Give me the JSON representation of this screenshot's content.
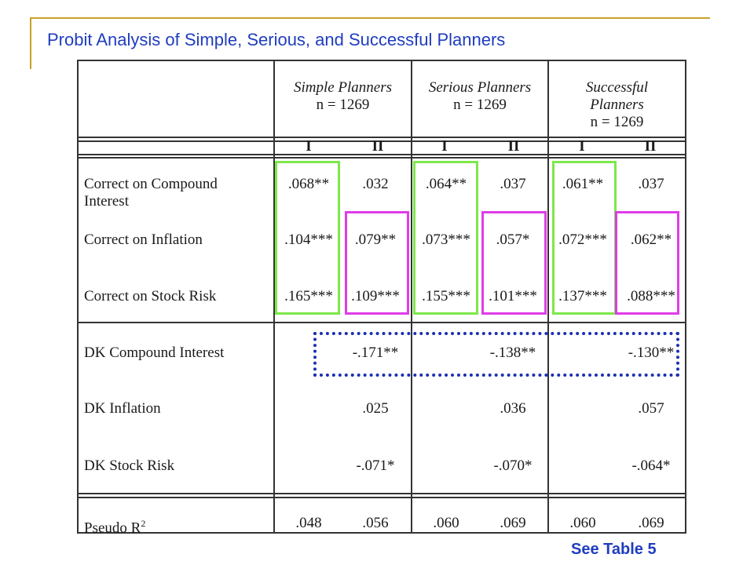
{
  "slide": {
    "title": "Probit Analysis of Simple, Serious, and Successful Planners",
    "footer_link": "See Table 5"
  },
  "table": {
    "groups": [
      {
        "line1": "Simple Planners",
        "line2": "",
        "n": "n = 1269"
      },
      {
        "line1": "Serious Planners",
        "line2": "",
        "n": "n = 1269"
      },
      {
        "line1": "Successful",
        "line2": "Planners",
        "n": "n = 1269"
      }
    ],
    "model_labels": [
      "I",
      "II",
      "I",
      "II",
      "I",
      "II"
    ],
    "rows": [
      {
        "label1": "Correct on Compound",
        "label2": "Interest",
        "values": [
          ".068**",
          ".032",
          ".064**",
          ".037",
          ".061**",
          ".037"
        ]
      },
      {
        "label1": "Correct on Inflation",
        "label2": "",
        "values": [
          ".104***",
          ".079**",
          ".073***",
          ".057*",
          ".072***",
          ".062**"
        ]
      },
      {
        "label1": "Correct on Stock Risk",
        "label2": "",
        "values": [
          ".165***",
          ".109***",
          ".155***",
          ".101***",
          ".137***",
          ".088***"
        ]
      },
      {
        "label1": "DK Compound Interest",
        "label2": "",
        "values": [
          "",
          "-.171**",
          "",
          "-.138**",
          "",
          "-.130**"
        ]
      },
      {
        "label1": "DK Inflation",
        "label2": "",
        "values": [
          "",
          ".025",
          "",
          ".036",
          "",
          ".057"
        ]
      },
      {
        "label1": "DK Stock Risk",
        "label2": "",
        "values": [
          "",
          "-.071*",
          "",
          "-.070*",
          "",
          "-.064*"
        ]
      }
    ],
    "pseudo_r2": {
      "label": "Pseudo R",
      "sup": "2",
      "values": [
        ".048",
        ".056",
        ".060",
        ".069",
        ".060",
        ".069"
      ]
    }
  },
  "highlight_colors": {
    "model_I": "#7ee84a",
    "model_II": "#e03ce8",
    "dk_compound": "#1a2fb0"
  }
}
